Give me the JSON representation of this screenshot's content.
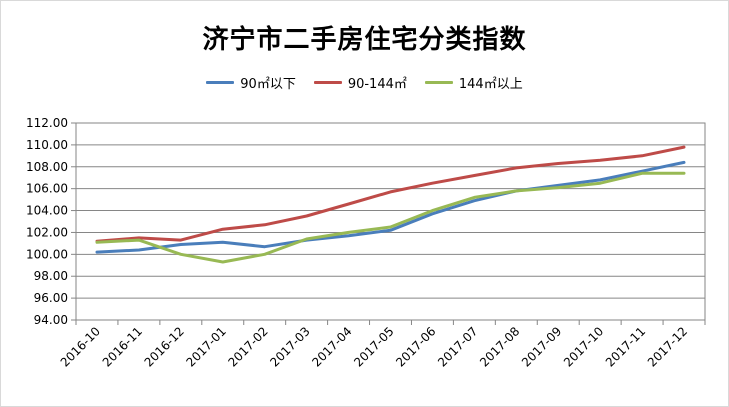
{
  "chart_data": {
    "type": "line",
    "title": "济宁市二手房住宅分类指数",
    "xlabel": "",
    "ylabel": "",
    "ylim": [
      94,
      112
    ],
    "ytick_step": 2,
    "y_tick_labels": [
      "94.00",
      "96.00",
      "98.00",
      "100.00",
      "102.00",
      "104.00",
      "106.00",
      "108.00",
      "110.00",
      "112.00"
    ],
    "grid": "horizontal",
    "legend_position": "top",
    "categories": [
      "2016-10",
      "2016-11",
      "2016-12",
      "2017-01",
      "2017-02",
      "2017-03",
      "2017-04",
      "2017-05",
      "2017-06",
      "2017-07",
      "2017-08",
      "2017-09",
      "2017-10",
      "2017-11",
      "2017-12"
    ],
    "series": [
      {
        "name": "90㎡以下",
        "color": "#4a7ebb",
        "values": [
          100.2,
          100.4,
          100.9,
          101.1,
          100.7,
          101.3,
          101.7,
          102.2,
          103.7,
          104.9,
          105.8,
          106.3,
          106.8,
          107.6,
          108.4
        ]
      },
      {
        "name": "90-144㎡",
        "color": "#be4b48",
        "values": [
          101.2,
          101.5,
          101.3,
          102.3,
          102.7,
          103.5,
          104.6,
          105.7,
          106.5,
          107.2,
          107.9,
          108.3,
          108.6,
          109.0,
          109.8
        ]
      },
      {
        "name": "144㎡以上",
        "color": "#98b954",
        "values": [
          101.1,
          101.3,
          100.0,
          99.3,
          100.0,
          101.4,
          102.0,
          102.5,
          104.0,
          105.2,
          105.8,
          106.1,
          106.5,
          107.4,
          107.4
        ]
      }
    ]
  }
}
